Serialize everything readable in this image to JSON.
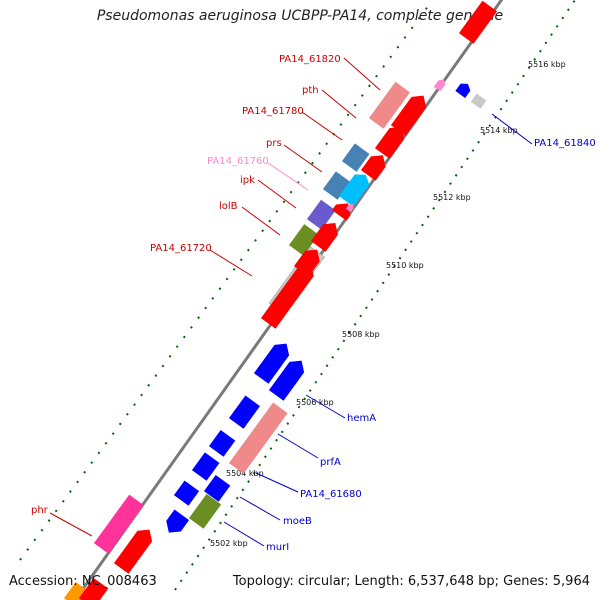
{
  "title": "Pseudomonas aeruginosa UCBPP-PA14, complete genome",
  "footer": {
    "accession": "Accession: NC_008463",
    "topology": "Topology: circular; Length: 6,537,648 bp; Genes: 5,964"
  },
  "colors": {
    "red_gene": "#ff0000",
    "red_label": "#cc0000",
    "blue_gene": "#0000ff",
    "blue_label": "#0000cc",
    "pink_gene": "#f08a8a",
    "light_pink_label": "#ff88cc",
    "gray_gene": "#c8c8c8",
    "backbone": "#777777",
    "tick": "#007a00"
  },
  "ticks": [
    {
      "label": "5502 kbp"
    },
    {
      "label": "5504 kbp"
    },
    {
      "label": "5506 kbp"
    },
    {
      "label": "5508 kbp"
    },
    {
      "label": "5510 kbp"
    },
    {
      "label": "5512 kbp"
    },
    {
      "label": "5514 kbp"
    },
    {
      "label": "5516 kbp"
    }
  ],
  "labels_left": [
    {
      "text": "PA14_61820",
      "color": "#cc0000"
    },
    {
      "text": "pth",
      "color": "#cc0000"
    },
    {
      "text": "PA14_61780",
      "color": "#cc0000"
    },
    {
      "text": "prs",
      "color": "#cc0000"
    },
    {
      "text": "PA14_61760",
      "color": "#ff88cc"
    },
    {
      "text": "ipk",
      "color": "#cc0000"
    },
    {
      "text": "lolB",
      "color": "#cc0000"
    },
    {
      "text": "PA14_61720",
      "color": "#cc0000"
    },
    {
      "text": "phr",
      "color": "#cc0000"
    }
  ],
  "labels_right": [
    {
      "text": "PA14_61840",
      "color": "#0000cc"
    },
    {
      "text": "hemA",
      "color": "#0000cc"
    },
    {
      "text": "prfA",
      "color": "#0000cc"
    },
    {
      "text": "PA14_61680",
      "color": "#0000cc"
    },
    {
      "text": "moeB",
      "color": "#0000cc"
    },
    {
      "text": "murI",
      "color": "#0000cc"
    }
  ]
}
